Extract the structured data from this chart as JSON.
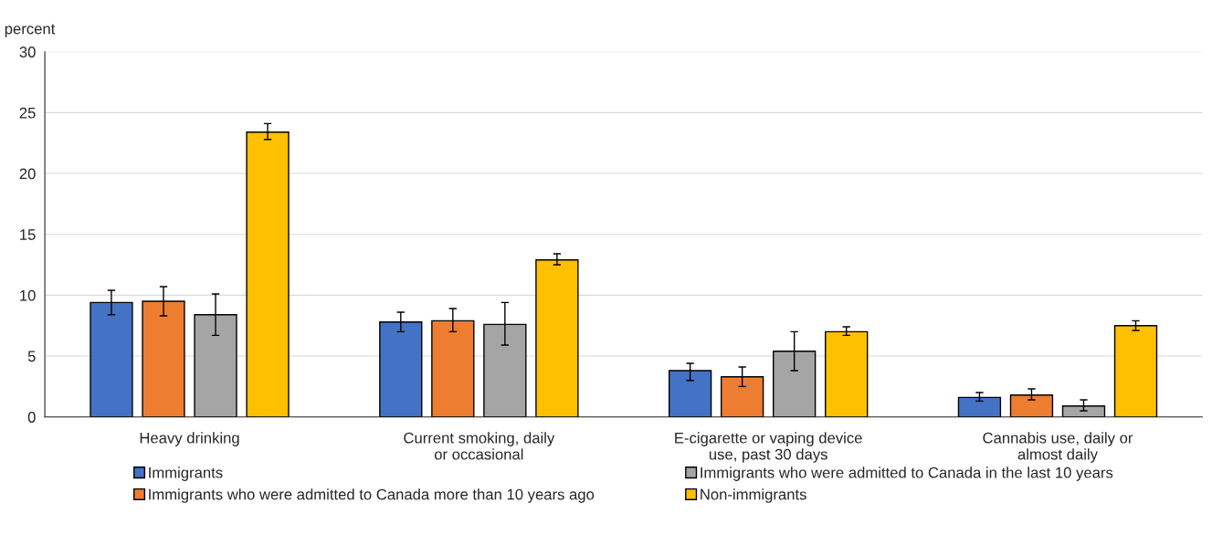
{
  "chart_data": {
    "type": "bar",
    "ylabel": "percent",
    "categories": [
      "Heavy drinking",
      "Current smoking, daily\nor occasional",
      "E-cigarette or vaping device\nuse, past 30 days",
      "Cannabis use, daily or\nalmost daily"
    ],
    "series": [
      {
        "name": "Immigrants",
        "color": "#4472c4",
        "values": [
          9.4,
          7.8,
          3.8,
          1.6
        ],
        "errors": [
          [
            8.4,
            10.4
          ],
          [
            7.0,
            8.6
          ],
          [
            3.0,
            4.4
          ],
          [
            1.3,
            2.0
          ]
        ]
      },
      {
        "name": "Immigrants who were admitted to Canada more than 10 years ago",
        "color": "#ed7d31",
        "values": [
          9.5,
          7.9,
          3.3,
          1.8
        ],
        "errors": [
          [
            8.3,
            10.7
          ],
          [
            7.0,
            8.9
          ],
          [
            2.5,
            4.1
          ],
          [
            1.4,
            2.3
          ]
        ]
      },
      {
        "name": "Immigrants who were admitted to Canada in the last 10 years",
        "color": "#a5a5a5",
        "values": [
          8.4,
          7.6,
          5.4,
          0.9
        ],
        "errors": [
          [
            6.7,
            10.1
          ],
          [
            5.9,
            9.4
          ],
          [
            3.8,
            7.0
          ],
          [
            0.5,
            1.4
          ]
        ]
      },
      {
        "name": "Non-immigrants",
        "color": "#ffc000",
        "values": [
          23.4,
          12.9,
          7.0,
          7.5
        ],
        "errors": [
          [
            22.8,
            24.1
          ],
          [
            12.5,
            13.4
          ],
          [
            6.7,
            7.4
          ],
          [
            7.1,
            7.9
          ]
        ]
      }
    ],
    "ylim": [
      0,
      30
    ],
    "yticks": [
      0,
      5,
      10,
      15,
      20,
      25,
      30
    ],
    "grid": "y",
    "legend": "bottom"
  }
}
